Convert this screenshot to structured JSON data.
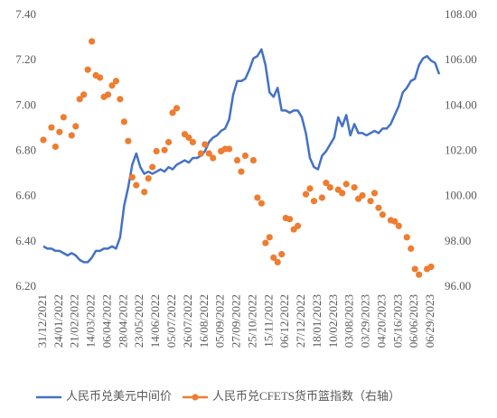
{
  "chart_data": {
    "type": "line",
    "categories": [
      "31/12/2021",
      null,
      null,
      null,
      "24/01/2022",
      null,
      null,
      null,
      "21/02/2022",
      null,
      null,
      null,
      "14/03/2022",
      null,
      null,
      null,
      "06/04/2022",
      null,
      null,
      null,
      "28/04/2022",
      null,
      null,
      null,
      "23/05/2022",
      null,
      null,
      null,
      "14/06/2022",
      null,
      null,
      null,
      "05/07/2022",
      null,
      null,
      null,
      "26/07/2022",
      null,
      null,
      null,
      "16/08/2022",
      null,
      null,
      null,
      "05/09/2022",
      null,
      null,
      null,
      "27/09/2022",
      null,
      null,
      null,
      "25/10/2022",
      null,
      null,
      null,
      "15/11/2022",
      null,
      null,
      null,
      "06/12/2022",
      null,
      null,
      null,
      "27/12/2022",
      null,
      null,
      null,
      "18/01/2023",
      null,
      null,
      null,
      "10/02/2023",
      null,
      null,
      null,
      "03/08/2023",
      null,
      null,
      null,
      "03/29/2023",
      null,
      null,
      null,
      "04/20/2023",
      null,
      null,
      null,
      "05/16/2023",
      null,
      null,
      null,
      "06/06/2023",
      null,
      null,
      null,
      "06/29/2023",
      null,
      null
    ],
    "series": [
      {
        "name": "人民币兑美元中间价",
        "color": "#4472c4",
        "mode": "line",
        "values": [
          6.38,
          6.37,
          6.37,
          6.36,
          6.36,
          6.35,
          6.34,
          6.35,
          6.34,
          6.32,
          6.31,
          6.31,
          6.33,
          6.36,
          6.36,
          6.37,
          6.37,
          6.38,
          6.37,
          6.42,
          6.56,
          6.64,
          6.74,
          6.79,
          6.73,
          6.7,
          6.71,
          6.7,
          6.71,
          6.72,
          6.71,
          6.73,
          6.72,
          6.74,
          6.75,
          6.76,
          6.75,
          6.77,
          6.77,
          6.78,
          6.8,
          6.84,
          6.86,
          6.87,
          6.89,
          6.9,
          6.94,
          7.05,
          7.11,
          7.11,
          7.12,
          7.16,
          7.21,
          7.22,
          7.25,
          7.18,
          7.06,
          7.04,
          7.08,
          6.98,
          6.98,
          6.97,
          6.98,
          6.98,
          6.95,
          6.88,
          6.77,
          6.73,
          6.72,
          6.78,
          6.8,
          6.83,
          6.86,
          6.95,
          6.91,
          6.96,
          6.87,
          6.92,
          6.88,
          6.88,
          6.87,
          6.88,
          6.89,
          6.88,
          6.9,
          6.9,
          6.92,
          6.96,
          7.0,
          7.06,
          7.08,
          7.11,
          7.12,
          7.18,
          7.21,
          7.22,
          7.2,
          7.19,
          7.14
        ]
      },
      {
        "name": "人民币兑CFETS货币篮指数（右轴）",
        "color": "#ed7d31",
        "mode": "markers",
        "axis": "y2",
        "values": [
          102.5,
          null,
          103.05,
          102.2,
          102.85,
          103.5,
          null,
          102.7,
          103.1,
          104.3,
          104.5,
          105.6,
          106.85,
          105.35,
          105.25,
          104.4,
          104.5,
          104.9,
          105.1,
          104.3,
          103.3,
          102.45,
          100.85,
          100.5,
          null,
          100.2,
          100.8,
          101.3,
          102.0,
          null,
          102.05,
          102.4,
          103.7,
          103.9,
          null,
          102.75,
          102.6,
          102.4,
          null,
          101.9,
          102.3,
          101.9,
          101.7,
          null,
          102.0,
          102.1,
          102.1,
          null,
          101.6,
          101.1,
          101.8,
          null,
          101.6,
          99.95,
          99.7,
          97.95,
          98.2,
          97.3,
          97.1,
          97.45,
          99.05,
          99.0,
          98.55,
          98.7,
          null,
          100.1,
          100.35,
          99.8,
          null,
          99.95,
          100.6,
          100.4,
          null,
          100.3,
          100.15,
          100.55,
          null,
          100.4,
          99.9,
          100.05,
          null,
          99.8,
          100.15,
          99.5,
          99.2,
          null,
          98.95,
          98.9,
          98.7,
          null,
          98.2,
          97.7,
          96.8,
          96.55,
          null,
          96.8,
          96.9,
          null,
          null
        ]
      }
    ],
    "ylim": [
      6.2,
      7.4
    ],
    "yticks": [
      {
        "value": 6.2,
        "label": "6.20"
      },
      {
        "value": 6.4,
        "label": "6.40"
      },
      {
        "value": 6.6,
        "label": "6.60"
      },
      {
        "value": 6.8,
        "label": "6.80"
      },
      {
        "value": 7.0,
        "label": "7.00"
      },
      {
        "value": 7.2,
        "label": "7.20"
      },
      {
        "value": 7.4,
        "label": "7.40"
      }
    ],
    "y2lim": [
      96,
      108
    ],
    "y2ticks": [
      {
        "value": 96,
        "label": "96.00"
      },
      {
        "value": 98,
        "label": "98.00"
      },
      {
        "value": 100,
        "label": "100.00"
      },
      {
        "value": 102,
        "label": "102.00"
      },
      {
        "value": 104,
        "label": "104.00"
      },
      {
        "value": 106,
        "label": "106.00"
      },
      {
        "value": 108,
        "label": "108.00"
      }
    ],
    "legend": "bottom"
  }
}
